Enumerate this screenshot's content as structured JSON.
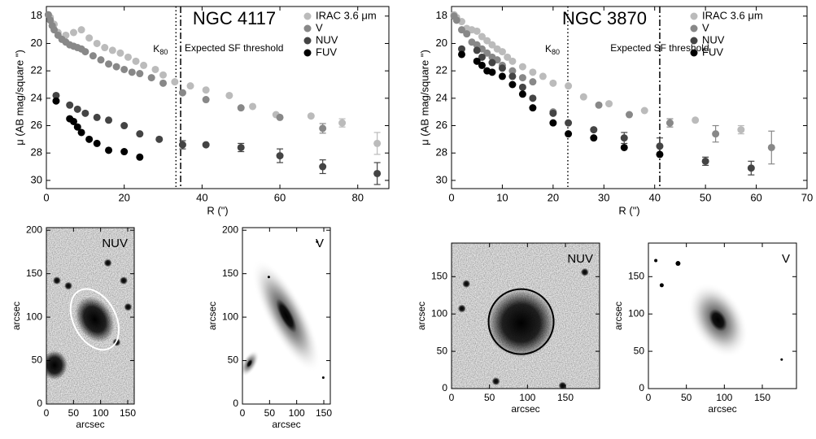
{
  "chart_data": [
    {
      "type": "scatter",
      "title": "NGC 4117",
      "xlabel": "R (\")",
      "ylabel": "μ (AB mag/square \")",
      "xlim": [
        0,
        88
      ],
      "ylim": [
        30.6,
        17.3
      ],
      "xticks": [
        0,
        20,
        40,
        60,
        80
      ],
      "yticks": [
        18,
        20,
        22,
        24,
        26,
        28,
        30
      ],
      "vlines": [
        {
          "x": 33.3,
          "label": "K",
          "subscript": "80",
          "style": "dotted"
        },
        {
          "x": 34.5,
          "label": "Expected SF threshold",
          "style": "dashdot"
        }
      ],
      "series": [
        {
          "name": "IRAC 3.6 μm",
          "color": "#bbbbbb",
          "x": [
            1,
            2,
            3,
            5,
            7,
            9,
            11,
            13,
            15,
            17,
            19,
            21,
            23,
            25,
            28,
            30,
            33,
            37,
            41,
            47,
            53,
            59,
            68,
            76,
            85
          ],
          "values": [
            18.1,
            18.6,
            19.2,
            19.4,
            19.2,
            19.0,
            19.6,
            20.0,
            20.3,
            20.5,
            20.7,
            21.0,
            21.3,
            21.6,
            21.9,
            22.3,
            22.8,
            23.1,
            23.4,
            23.8,
            24.6,
            25.2,
            25.3,
            25.8,
            27.3
          ],
          "errors": [
            0.05,
            0.05,
            0.05,
            0.05,
            0.05,
            0.05,
            0.05,
            0.05,
            0.05,
            0.05,
            0.05,
            0.05,
            0.05,
            0.05,
            0.05,
            0.05,
            0.05,
            0.05,
            0.05,
            0.1,
            0.1,
            0.15,
            0.15,
            0.3,
            0.8
          ]
        },
        {
          "name": "V",
          "color": "#888888",
          "x": [
            0.5,
            1,
            1.5,
            2,
            3,
            4,
            5,
            6,
            7,
            8,
            9,
            10,
            12,
            14,
            16,
            18,
            20,
            22,
            24,
            27,
            30,
            35,
            41,
            50,
            60,
            71
          ],
          "values": [
            17.9,
            18.3,
            18.7,
            19.0,
            19.4,
            19.7,
            19.9,
            20.1,
            20.2,
            20.3,
            20.4,
            20.6,
            20.9,
            21.2,
            21.5,
            21.7,
            21.9,
            22.1,
            22.2,
            22.5,
            22.9,
            23.6,
            24.1,
            24.7,
            25.4,
            26.2
          ],
          "errors": [
            0.05,
            0.05,
            0.05,
            0.05,
            0.05,
            0.05,
            0.05,
            0.05,
            0.05,
            0.05,
            0.05,
            0.05,
            0.05,
            0.05,
            0.05,
            0.05,
            0.05,
            0.05,
            0.05,
            0.05,
            0.05,
            0.05,
            0.1,
            0.15,
            0.2,
            0.35
          ]
        },
        {
          "name": "NUV",
          "color": "#444444",
          "x": [
            2.5,
            6,
            8,
            10,
            13,
            16,
            20,
            24,
            29,
            35,
            41,
            50,
            60,
            71,
            85
          ],
          "values": [
            23.8,
            24.5,
            24.8,
            25.1,
            25.4,
            25.6,
            26.0,
            26.6,
            27.0,
            27.4,
            27.4,
            27.6,
            28.2,
            29.0,
            29.5
          ],
          "errors": [
            0.1,
            0.1,
            0.1,
            0.1,
            0.1,
            0.1,
            0.1,
            0.1,
            0.2,
            0.3,
            0.1,
            0.3,
            0.5,
            0.5,
            0.8
          ]
        },
        {
          "name": "FUV",
          "color": "#000000",
          "x": [
            2.5,
            6,
            7,
            8,
            9,
            11,
            13,
            16,
            20,
            24
          ],
          "values": [
            24.2,
            25.5,
            25.7,
            26.1,
            26.5,
            27.0,
            27.3,
            27.8,
            27.9,
            28.3
          ],
          "errors": [
            0.1,
            0.1,
            0.1,
            0.1,
            0.1,
            0.1,
            0.1,
            0.1,
            0.1,
            0.1
          ]
        }
      ]
    },
    {
      "type": "scatter",
      "title": "NGC 3870",
      "xlabel": "R (\")",
      "ylabel": "μ (AB mag/square \")",
      "xlim": [
        0,
        70
      ],
      "ylim": [
        30.6,
        17.3
      ],
      "xticks": [
        0,
        10,
        20,
        30,
        40,
        50,
        60,
        70
      ],
      "yticks": [
        18,
        20,
        22,
        24,
        26,
        28,
        30
      ],
      "vlines": [
        {
          "x": 22.9,
          "label": "K",
          "subscript": "80",
          "style": "dotted"
        },
        {
          "x": 41,
          "label": "Expected SF threshold",
          "style": "dashdot"
        }
      ],
      "series": [
        {
          "name": "IRAC 3.6 μm",
          "color": "#bbbbbb",
          "x": [
            0.5,
            1,
            2,
            3,
            4,
            5,
            6,
            7,
            8,
            9,
            10,
            11,
            12,
            14,
            16,
            18,
            20,
            23,
            26,
            31,
            38,
            48,
            57
          ],
          "values": [
            17.9,
            18.1,
            18.4,
            18.9,
            19.0,
            19.1,
            19.5,
            19.8,
            20.1,
            20.4,
            20.6,
            21.0,
            21.3,
            21.7,
            22.1,
            22.4,
            22.9,
            23.1,
            23.9,
            24.4,
            24.9,
            25.6,
            26.3
          ],
          "errors": [
            0.05,
            0.05,
            0.05,
            0.05,
            0.05,
            0.05,
            0.05,
            0.05,
            0.05,
            0.05,
            0.05,
            0.05,
            0.05,
            0.05,
            0.05,
            0.05,
            0.05,
            0.05,
            0.05,
            0.1,
            0.1,
            0.2,
            0.3
          ]
        },
        {
          "name": "V",
          "color": "#888888",
          "x": [
            0.5,
            1,
            2,
            3,
            4,
            5,
            6,
            7,
            8,
            9,
            10,
            12,
            14,
            16,
            20,
            29,
            35,
            43,
            52,
            63
          ],
          "values": [
            18.0,
            18.3,
            19.0,
            19.3,
            19.9,
            20.1,
            20.4,
            20.7,
            21.0,
            21.2,
            21.6,
            22.0,
            22.5,
            22.8,
            25.0,
            24.5,
            25.2,
            25.8,
            26.6,
            27.6
          ],
          "errors": [
            0.05,
            0.05,
            0.05,
            0.05,
            0.05,
            0.05,
            0.05,
            0.05,
            0.05,
            0.05,
            0.05,
            0.05,
            0.05,
            0.05,
            0.1,
            0.1,
            0.1,
            0.3,
            0.6,
            1.2
          ]
        },
        {
          "name": "NUV",
          "color": "#444444",
          "x": [
            2,
            5,
            6,
            8,
            10,
            12,
            14,
            16,
            20,
            23,
            28,
            34,
            41,
            50,
            59
          ],
          "values": [
            20.4,
            20.5,
            21.0,
            21.4,
            21.8,
            22.4,
            23.2,
            24.0,
            25.1,
            25.8,
            26.3,
            26.9,
            27.5,
            28.6,
            29.1
          ],
          "errors": [
            0.1,
            0.1,
            0.1,
            0.1,
            0.1,
            0.1,
            0.1,
            0.1,
            0.1,
            0.2,
            0.2,
            0.4,
            0.6,
            0.3,
            0.5
          ]
        },
        {
          "name": "FUV",
          "color": "#000000",
          "x": [
            2,
            5,
            6,
            7,
            8,
            10,
            12,
            14,
            16,
            20,
            23,
            28,
            34,
            41
          ],
          "values": [
            20.8,
            21.3,
            21.6,
            22.0,
            22.1,
            22.4,
            23.0,
            23.7,
            24.7,
            25.8,
            26.6,
            26.9,
            27.6,
            28.1
          ],
          "errors": [
            0.1,
            0.1,
            0.1,
            0.1,
            0.1,
            0.1,
            0.1,
            0.1,
            0.1,
            0.1,
            0.1,
            0.1,
            0.2,
            0.2
          ]
        }
      ]
    },
    {
      "type": "image",
      "label": "NUV",
      "xlabel": "arcsec",
      "ylabel": "arcsec",
      "xlim": [
        0,
        162
      ],
      "ylim": [
        0,
        203
      ],
      "xticks": [
        0,
        50,
        100,
        150
      ],
      "yticks": [
        0,
        50,
        100,
        150,
        200
      ]
    },
    {
      "type": "image",
      "label": "V",
      "xlabel": "arcsec",
      "ylabel": "arcsec",
      "xlim": [
        0,
        162
      ],
      "ylim": [
        0,
        203
      ],
      "xticks": [
        0,
        50,
        100,
        150
      ],
      "yticks": [
        0,
        50,
        100,
        150,
        200
      ]
    },
    {
      "type": "image",
      "label": "NUV",
      "xlabel": "arcsec",
      "ylabel": "arcsec",
      "xlim": [
        0,
        195
      ],
      "ylim": [
        0,
        195
      ],
      "xticks": [
        0,
        50,
        100,
        150
      ],
      "yticks": [
        0,
        50,
        100,
        150
      ]
    },
    {
      "type": "image",
      "label": "V",
      "xlabel": "arcsec",
      "ylabel": "arcsec",
      "xlim": [
        0,
        195
      ],
      "ylim": [
        0,
        195
      ],
      "xticks": [
        0,
        50,
        100,
        150
      ],
      "yticks": [
        0,
        50,
        100,
        150
      ]
    }
  ]
}
